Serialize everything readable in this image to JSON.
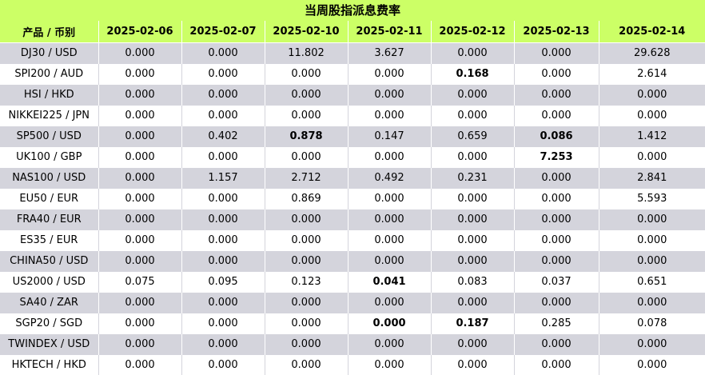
{
  "title": "当周股指派息费率",
  "header": {
    "product": "产品 / 币别",
    "dates": [
      "2025-02-06",
      "2025-02-07",
      "2025-02-10",
      "2025-02-11",
      "2025-02-12",
      "2025-02-13",
      "2025-02-14"
    ]
  },
  "rows": [
    {
      "product": "DJ30 / USD",
      "values": [
        "0.000",
        "0.000",
        "11.802",
        "3.627",
        "0.000",
        "0.000",
        "29.628"
      ],
      "bold": []
    },
    {
      "product": "SPI200 / AUD",
      "values": [
        "0.000",
        "0.000",
        "0.000",
        "0.000",
        "0.168",
        "0.000",
        "2.614"
      ],
      "bold": [
        4
      ]
    },
    {
      "product": "HSI / HKD",
      "values": [
        "0.000",
        "0.000",
        "0.000",
        "0.000",
        "0.000",
        "0.000",
        "0.000"
      ],
      "bold": []
    },
    {
      "product": "NIKKEI225 / JPN",
      "values": [
        "0.000",
        "0.000",
        "0.000",
        "0.000",
        "0.000",
        "0.000",
        "0.000"
      ],
      "bold": []
    },
    {
      "product": "SP500 / USD",
      "values": [
        "0.000",
        "0.402",
        "0.878",
        "0.147",
        "0.659",
        "0.086",
        "1.412"
      ],
      "bold": [
        2,
        5
      ]
    },
    {
      "product": "UK100 / GBP",
      "values": [
        "0.000",
        "0.000",
        "0.000",
        "0.000",
        "0.000",
        "7.253",
        "0.000"
      ],
      "bold": [
        5
      ]
    },
    {
      "product": "NAS100 / USD",
      "values": [
        "0.000",
        "1.157",
        "2.712",
        "0.492",
        "0.231",
        "0.000",
        "2.841"
      ],
      "bold": []
    },
    {
      "product": "EU50 / EUR",
      "values": [
        "0.000",
        "0.000",
        "0.869",
        "0.000",
        "0.000",
        "0.000",
        "5.593"
      ],
      "bold": []
    },
    {
      "product": "FRA40 / EUR",
      "values": [
        "0.000",
        "0.000",
        "0.000",
        "0.000",
        "0.000",
        "0.000",
        "0.000"
      ],
      "bold": []
    },
    {
      "product": "ES35 / EUR",
      "values": [
        "0.000",
        "0.000",
        "0.000",
        "0.000",
        "0.000",
        "0.000",
        "0.000"
      ],
      "bold": []
    },
    {
      "product": "CHINA50 / USD",
      "values": [
        "0.000",
        "0.000",
        "0.000",
        "0.000",
        "0.000",
        "0.000",
        "0.000"
      ],
      "bold": []
    },
    {
      "product": "US2000 / USD",
      "values": [
        "0.075",
        "0.095",
        "0.123",
        "0.041",
        "0.083",
        "0.037",
        "0.651"
      ],
      "bold": [
        3
      ]
    },
    {
      "product": "SA40 / ZAR",
      "values": [
        "0.000",
        "0.000",
        "0.000",
        "0.000",
        "0.000",
        "0.000",
        "0.000"
      ],
      "bold": []
    },
    {
      "product": "SGP20 / SGD",
      "values": [
        "0.000",
        "0.000",
        "0.000",
        "0.000",
        "0.187",
        "0.285",
        "0.078"
      ],
      "bold": [
        3,
        4
      ]
    },
    {
      "product": "TWINDEX / USD",
      "values": [
        "0.000",
        "0.000",
        "0.000",
        "0.000",
        "0.000",
        "0.000",
        "0.000"
      ],
      "bold": []
    },
    {
      "product": "HKTECH / HKD",
      "values": [
        "0.000",
        "0.000",
        "0.000",
        "0.000",
        "0.000",
        "0.000",
        "0.000"
      ],
      "bold": []
    }
  ],
  "colors": {
    "header_bg": "#ccff66",
    "row_odd_bg": "#d4d4dc",
    "row_even_bg": "#ffffff"
  }
}
